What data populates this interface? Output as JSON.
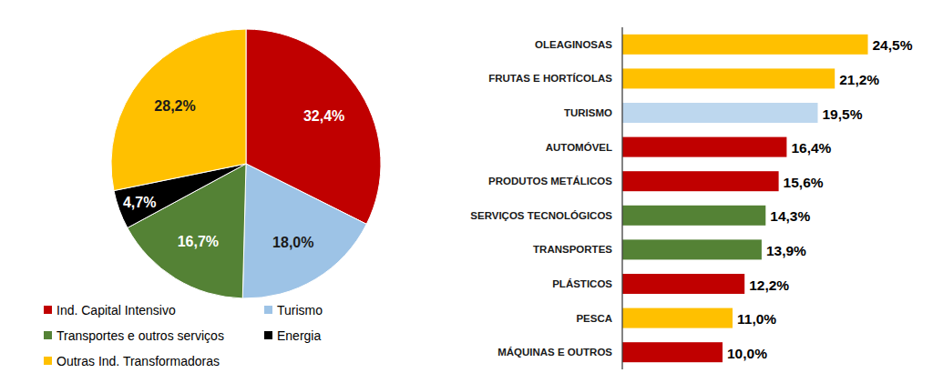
{
  "chart_data": [
    {
      "type": "pie",
      "categories": [
        "Ind. Capital Intensivo",
        "Turismo",
        "Transportes e outros serviços",
        "Energia",
        "Outras Ind. Transformadoras"
      ],
      "values": [
        32.4,
        18.0,
        16.7,
        4.7,
        28.2
      ],
      "value_labels": [
        "32,4%",
        "18,0%",
        "16,7%",
        "4,7%",
        "28,2%"
      ],
      "colors": [
        "#c00000",
        "#9dc3e6",
        "#548235",
        "#000000",
        "#ffc000"
      ],
      "data_labels": true,
      "legend": "bottom-left"
    },
    {
      "type": "bar",
      "orientation": "horizontal",
      "categories": [
        "OLEAGINOSAS",
        "FRUTAS E HORTÍCOLAS",
        "TURISMO",
        "AUTOMÓVEL",
        "PRODUTOS METÁLICOS",
        "SERVIÇOS TECNOLÓGICOS",
        "TRANSPORTES",
        "PLÁSTICOS",
        "PESCA",
        "MÁQUINAS E OUTROS"
      ],
      "values": [
        24.5,
        21.2,
        19.5,
        16.4,
        15.6,
        14.3,
        13.9,
        12.2,
        11.0,
        10.0
      ],
      "value_labels": [
        "24,5%",
        "21,2%",
        "19,5%",
        "16,4%",
        "15,6%",
        "14,3%",
        "13,9%",
        "12,2%",
        "11,0%",
        "10,0%"
      ],
      "colors": [
        "#ffc000",
        "#ffc000",
        "#bdd7ee",
        "#c00000",
        "#c00000",
        "#548235",
        "#548235",
        "#c00000",
        "#ffc000",
        "#c00000"
      ],
      "xlim": [
        0,
        25
      ],
      "data_labels": true,
      "tick_labels": "y"
    }
  ]
}
